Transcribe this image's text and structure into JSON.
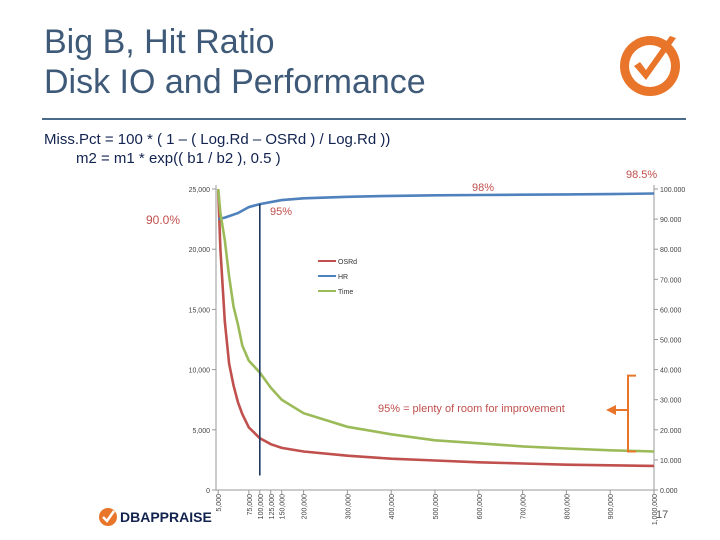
{
  "slide": {
    "title_line1": "Big B, Hit Ratio",
    "title_line2": "Disk IO and Performance",
    "formula_line1": "Miss.Pct = 100 * ( 1 – ( Log.Rd – OSRd ) / Log.Rd ))",
    "formula_line2": "m2 = m1 * exp(( b1 / b2 ), 0.5 )",
    "footer_logo_text": "DBAPPRAISE",
    "page_number": "17",
    "colors": {
      "title": "#3f5a78",
      "formula": "#12234f",
      "accent": "#e8752a"
    }
  },
  "chart_data": {
    "type": "line",
    "x_ticks": [
      5000,
      75000,
      100000,
      125000,
      150000,
      200000,
      300000,
      400000,
      500000,
      600000,
      700000,
      800000,
      900000,
      1000000
    ],
    "x_tick_labels": [
      "5,000",
      "75,000",
      "100,000",
      "125,000",
      "150,000",
      "200,000",
      "300,000",
      "400,000",
      "500,000",
      "600,000",
      "700,000",
      "800,000",
      "900,000",
      "1,000,000"
    ],
    "xlim": [
      0,
      1000000
    ],
    "y_left": {
      "ylim": [
        0,
        25000
      ],
      "ticks": [
        0,
        5000,
        10000,
        15000,
        20000,
        25000
      ],
      "tick_labels": [
        "0",
        "5,000",
        "10,000",
        "15,000",
        "20,000",
        "25,000"
      ]
    },
    "y_right": {
      "ylim": [
        0,
        100
      ],
      "ticks": [
        0,
        10,
        20,
        30,
        40,
        50,
        60,
        70,
        80,
        90,
        100
      ],
      "tick_labels": [
        "0.000",
        "10.000",
        "20.000",
        "30.000",
        "40.000",
        "50.000",
        "60.000",
        "70.000",
        "80.000",
        "90.000",
        "100.000"
      ]
    },
    "series": [
      {
        "name": "OSRd",
        "axis": "left",
        "color": "#c0504d",
        "points": [
          [
            5000,
            25000
          ],
          [
            10000,
            20000
          ],
          [
            20000,
            14000
          ],
          [
            30000,
            10500
          ],
          [
            40000,
            8700
          ],
          [
            50000,
            7300
          ],
          [
            60000,
            6300
          ],
          [
            75000,
            5200
          ],
          [
            100000,
            4300
          ],
          [
            125000,
            3800
          ],
          [
            150000,
            3500
          ],
          [
            200000,
            3200
          ],
          [
            300000,
            2850
          ],
          [
            400000,
            2600
          ],
          [
            500000,
            2450
          ],
          [
            600000,
            2300
          ],
          [
            700000,
            2200
          ],
          [
            800000,
            2100
          ],
          [
            900000,
            2050
          ],
          [
            1000000,
            2000
          ]
        ]
      },
      {
        "name": "HR",
        "axis": "right",
        "color": "#4f81bd",
        "points": [
          [
            5000,
            90.0
          ],
          [
            20000,
            90.5
          ],
          [
            50000,
            92.0
          ],
          [
            75000,
            94.0
          ],
          [
            100000,
            95.0
          ],
          [
            150000,
            96.3
          ],
          [
            200000,
            96.9
          ],
          [
            300000,
            97.4
          ],
          [
            400000,
            97.7
          ],
          [
            500000,
            97.9
          ],
          [
            600000,
            98.0
          ],
          [
            700000,
            98.1
          ],
          [
            800000,
            98.2
          ],
          [
            900000,
            98.3
          ],
          [
            1000000,
            98.5
          ]
        ]
      },
      {
        "name": "Time",
        "axis": "right",
        "color": "#9bbb59",
        "points": [
          [
            5000,
            100
          ],
          [
            10000,
            92
          ],
          [
            20000,
            83
          ],
          [
            30000,
            71
          ],
          [
            40000,
            61
          ],
          [
            50000,
            55
          ],
          [
            60000,
            48
          ],
          [
            75000,
            43
          ],
          [
            100000,
            39
          ],
          [
            125000,
            34
          ],
          [
            150000,
            30
          ],
          [
            200000,
            25.5
          ],
          [
            300000,
            21
          ],
          [
            400000,
            18.5
          ],
          [
            500000,
            16.5
          ],
          [
            600000,
            15.5
          ],
          [
            700000,
            14.5
          ],
          [
            800000,
            13.8
          ],
          [
            900000,
            13.2
          ],
          [
            1000000,
            12.8
          ]
        ]
      }
    ],
    "annotations": [
      {
        "text": "90.0%",
        "x": 5000,
        "y": 90.0,
        "axis": "right"
      },
      {
        "text": "95%",
        "x": 100000,
        "y": 95.0,
        "axis": "right"
      },
      {
        "text": "98%",
        "x": 600000,
        "y": 98.0,
        "axis": "right"
      },
      {
        "text": "98.5%",
        "x": 1000000,
        "y": 98.5,
        "axis": "right"
      },
      {
        "text": "95% = plenty of room for improvement"
      }
    ],
    "marker_x": 100000,
    "bracket_range": [
      12.8,
      38
    ]
  }
}
